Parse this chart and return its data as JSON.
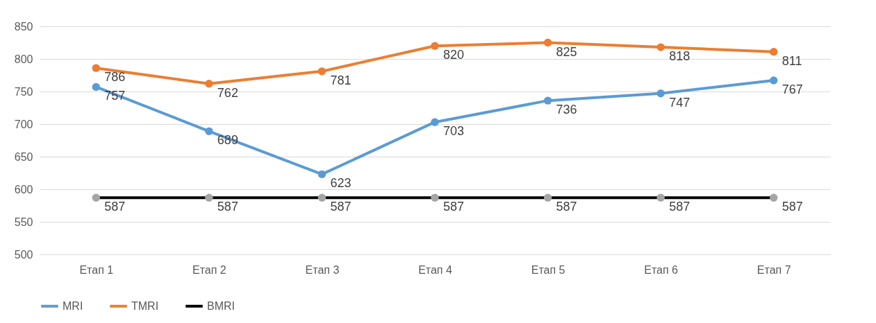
{
  "chart_data": {
    "type": "line",
    "categories": [
      "Етап 1",
      "Етап 2",
      "Етап 3",
      "Етап 4",
      "Етап 5",
      "Етап 6",
      "Етап 7"
    ],
    "series": [
      {
        "name": "MRI",
        "color": "#5b9bd5",
        "values": [
          757,
          689,
          623,
          703,
          736,
          747,
          767
        ]
      },
      {
        "name": "TMRI",
        "color": "#ed7d31",
        "values": [
          786,
          762,
          781,
          820,
          825,
          818,
          811
        ]
      },
      {
        "name": "BMRI",
        "color": "#000000",
        "colors": [
          "#a5a5a5",
          "#a5a5a5",
          "#a5a5a5",
          "#a5a5a5",
          "#a5a5a5",
          "#a5a5a5",
          "#a5a5a5"
        ],
        "values": [
          587,
          587,
          587,
          587,
          587,
          587,
          587
        ]
      }
    ],
    "ylim": [
      500,
      850
    ],
    "yticks": [
      500,
      550,
      600,
      650,
      700,
      750,
      800,
      850
    ],
    "grid": "y",
    "legend": "bottom",
    "marker": "circle",
    "line_style": "solid",
    "data_labels": true
  }
}
